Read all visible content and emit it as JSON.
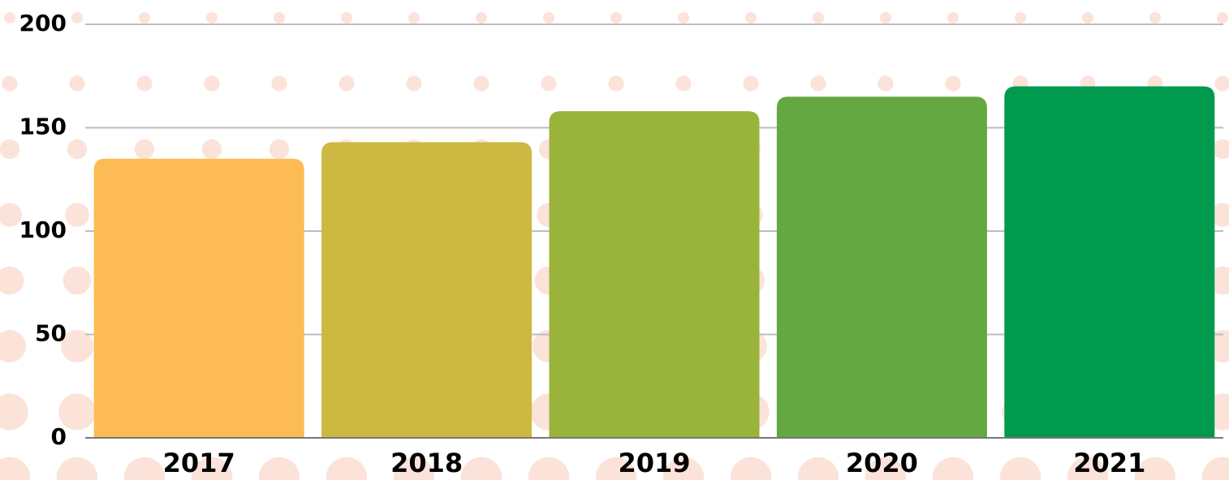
{
  "chart_data": {
    "type": "bar",
    "categories": [
      "2017",
      "2018",
      "2019",
      "2020",
      "2021"
    ],
    "values": [
      135,
      143,
      158,
      165,
      170
    ],
    "colors": [
      "#fdbb55",
      "#cdb842",
      "#9ab33a",
      "#63a840",
      "#009a4e"
    ],
    "ylim": [
      0,
      200
    ],
    "yticks": [
      0,
      50,
      100,
      150,
      200
    ],
    "grid": true
  }
}
